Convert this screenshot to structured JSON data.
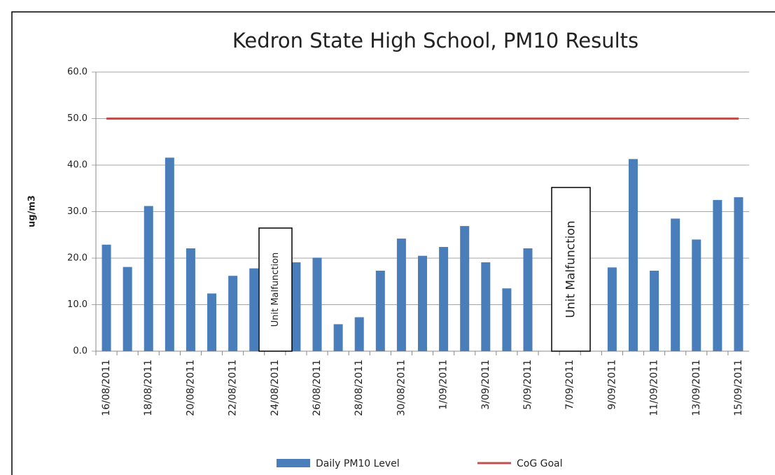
{
  "chart_data": {
    "type": "bar",
    "title": "Kedron State High School, PM10 Results",
    "y_label": "ug/m3",
    "categories": [
      "16/08/2011",
      null,
      "18/08/2011",
      null,
      "20/08/2011",
      null,
      "22/08/2011",
      null,
      "24/08/2011",
      null,
      "26/08/2011",
      null,
      "28/08/2011",
      null,
      "30/08/2011",
      null,
      "1/09/2011",
      null,
      "3/09/2011",
      null,
      "5/09/2011",
      null,
      "7/09/2011",
      null,
      "9/09/2011",
      null,
      "11/09/2011",
      null,
      "13/09/2011",
      null,
      "15/09/2011"
    ],
    "series": [
      {
        "name": "Daily PM10 Level",
        "color": "#4a7ebb",
        "type": "bar",
        "values": [
          22.9,
          18.1,
          31.2,
          41.6,
          22.1,
          12.4,
          16.2,
          17.8,
          null,
          19.1,
          20.1,
          5.8,
          7.3,
          17.3,
          24.2,
          20.5,
          22.4,
          26.9,
          19.1,
          13.5,
          22.1,
          null,
          null,
          null,
          18.0,
          41.3,
          17.3,
          28.5,
          24.0,
          32.5,
          33.1
        ]
      },
      {
        "name": "CoG Goal",
        "color": "#c0504d",
        "type": "line",
        "values": [
          50,
          50,
          50,
          50,
          50,
          50,
          50,
          50,
          50,
          50,
          50,
          50,
          50,
          50,
          50,
          50,
          50,
          50,
          50,
          50,
          50,
          50,
          50,
          50,
          50,
          50,
          50,
          50,
          50,
          50,
          50
        ]
      }
    ],
    "annotations": [
      {
        "text": "Unit Malfunction"
      },
      {
        "text": "Unit Malfunction"
      }
    ],
    "ylim": [
      0,
      60
    ],
    "yticks": [
      {
        "value": 0,
        "label": "0.0"
      },
      {
        "value": 10,
        "label": "10.0"
      },
      {
        "value": 20,
        "label": "20.0"
      },
      {
        "value": 30,
        "label": "30.0"
      },
      {
        "value": 40,
        "label": "40.0"
      },
      {
        "value": 50,
        "label": "50.0"
      },
      {
        "value": 60,
        "label": "60.0"
      }
    ],
    "grid": true,
    "legend": "bottom"
  }
}
